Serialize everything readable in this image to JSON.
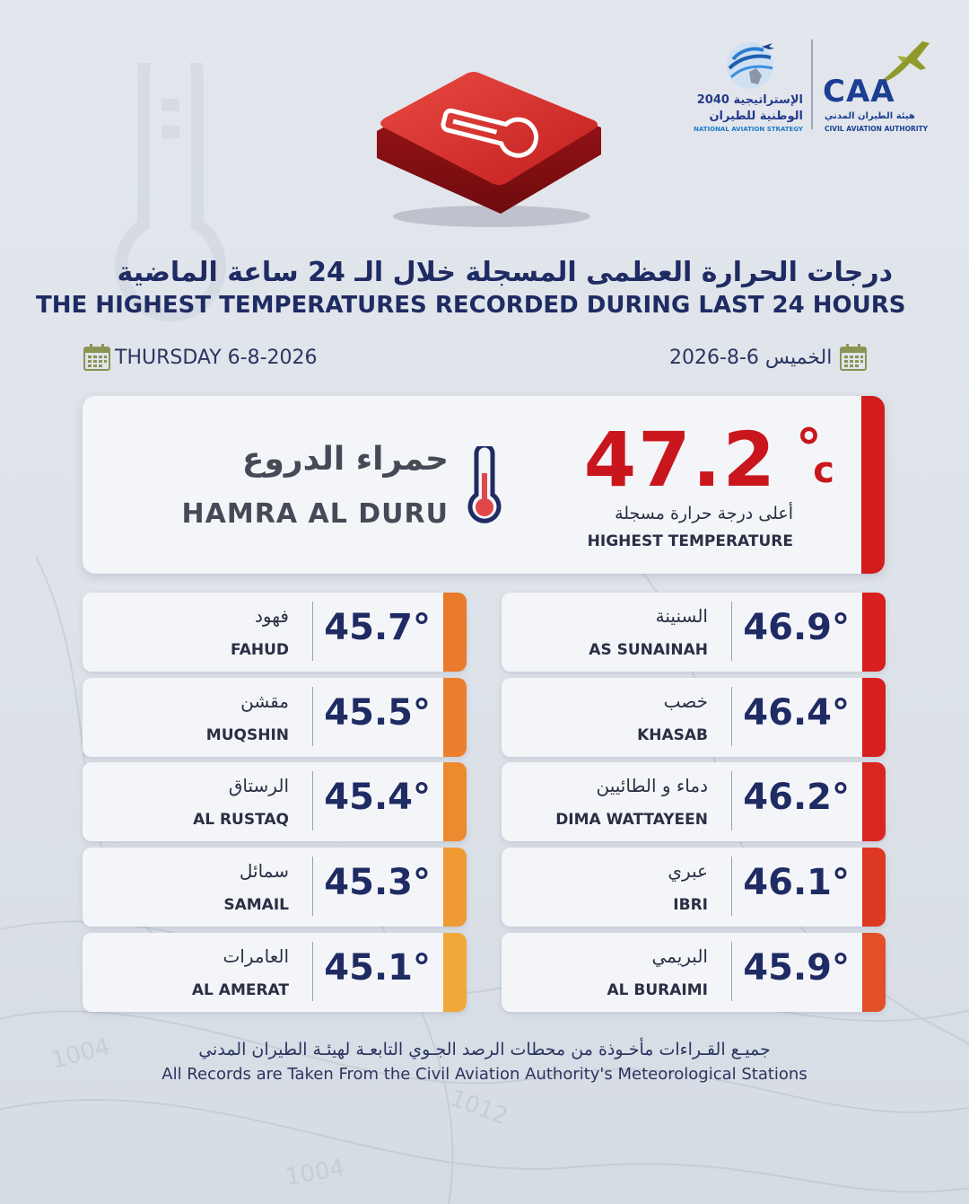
{
  "logos": {
    "nas": {
      "line1_ar": "الإستراتيجية 2040",
      "line2_ar": "الوطنية للطيران",
      "line_en": "NATIONAL AVIATION STRATEGY"
    },
    "caa": {
      "name": "CAA",
      "line_ar": "هيئة الطيران المدني",
      "line_en": "CIVIL AVIATION AUTHORITY"
    }
  },
  "title": {
    "ar": "درجات الحرارة العظمى المسجلة خلال الـ 24 ساعة الماضية",
    "en": "THE HIGHEST TEMPERATURES RECORDED DURING LAST 24 HOURS"
  },
  "date": {
    "en": "THURSDAY 6-8-2026",
    "ar": "الخميس 6-8-2026"
  },
  "highest": {
    "value": "47.2",
    "degree": "°",
    "unit": "c",
    "label_ar": "أعلى درجة حرارة مسجلة",
    "label_en": "HIGHEST TEMPERATURE",
    "city_ar": "حمراء الدروع",
    "city_en": "HAMRA AL DURU"
  },
  "stations": [
    {
      "ar": "السنينة",
      "en": "AS SUNAINAH",
      "temp": "46.9°",
      "color": "#d81e1e"
    },
    {
      "ar": "فهود",
      "en": "FAHUD",
      "temp": "45.7°",
      "color": "#ea7a2c"
    },
    {
      "ar": "خصب",
      "en": "KHASAB",
      "temp": "46.4°",
      "color": "#d81e1e"
    },
    {
      "ar": "مقشن",
      "en": "MUQSHIN",
      "temp": "45.5°",
      "color": "#ec7f2e"
    },
    {
      "ar": "دماء و الطائيين",
      "en": "DIMA WATTAYEEN",
      "temp": "46.2°",
      "color": "#da2620"
    },
    {
      "ar": "الرستاق",
      "en": "AL RUSTAQ",
      "temp": "45.4°",
      "color": "#ed8a30"
    },
    {
      "ar": "عبري",
      "en": "IBRI",
      "temp": "46.1°",
      "color": "#dd3822"
    },
    {
      "ar": "سمائل",
      "en": "SAMAIL",
      "temp": "45.3°",
      "color": "#f09a34"
    },
    {
      "ar": "البريمي",
      "en": "AL BURAIMI",
      "temp": "45.9°",
      "color": "#e24f28"
    },
    {
      "ar": "العامرات",
      "en": "AL AMERAT",
      "temp": "45.1°",
      "color": "#f2a73a"
    }
  ],
  "footer": {
    "ar": "جميـع القـراءات مأخـوذة من محطات الرصد الجـوي التابعـة لهيئـة الطيران المدني",
    "en": "All Records are Taken From the Civil Aviation Authority's Meteorological Stations"
  }
}
